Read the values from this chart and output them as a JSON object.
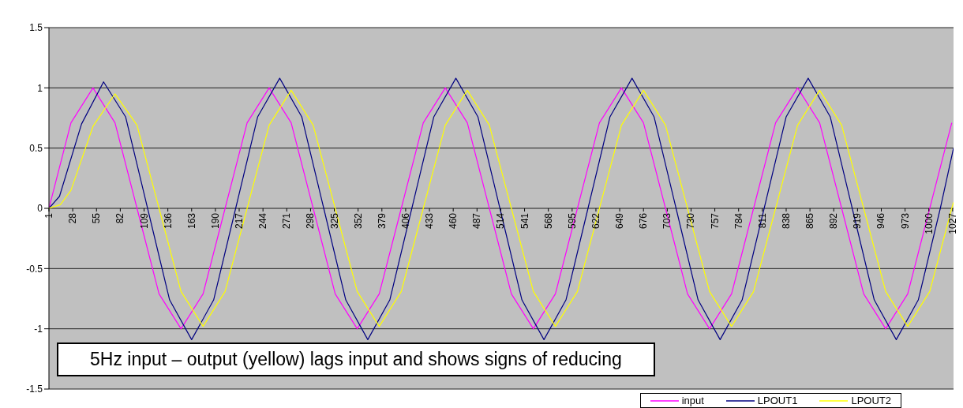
{
  "chart_data": {
    "type": "line",
    "annotations": [
      "5Hz input – output (yellow) lags input and shows signs of reducing"
    ],
    "xlim": [
      1,
      1028
    ],
    "xticks": [
      1,
      28,
      55,
      82,
      109,
      136,
      163,
      190,
      217,
      244,
      271,
      298,
      325,
      352,
      379,
      406,
      433,
      460,
      487,
      514,
      541,
      568,
      595,
      622,
      649,
      676,
      703,
      730,
      757,
      784,
      811,
      838,
      865,
      892,
      919,
      946,
      973,
      1000,
      1027
    ],
    "ylim": [
      -1.5,
      1.5
    ],
    "yticks": [
      -1.5,
      -1,
      -0.5,
      0,
      0.5,
      1,
      1.5
    ],
    "grid": "y",
    "legend": "bottom right",
    "marker": "none",
    "line_style": "solid",
    "series": [
      {
        "name": "input",
        "color": "#ff00ff",
        "x": [
          1,
          26,
          51,
          76,
          101,
          126,
          151,
          176,
          201,
          226,
          251,
          276,
          301,
          326,
          351,
          376,
          401,
          426,
          451,
          476,
          501,
          526,
          551,
          576,
          601,
          626,
          651,
          676,
          701,
          726,
          751,
          776,
          801,
          826,
          851,
          876,
          901,
          926,
          951,
          976,
          1001,
          1026
        ],
        "values": [
          0,
          0.71,
          1,
          0.71,
          0,
          -0.71,
          -1,
          -0.71,
          0,
          0.71,
          1,
          0.71,
          0,
          -0.71,
          -1,
          -0.71,
          0,
          0.71,
          1,
          0.71,
          0,
          -0.71,
          -1,
          -0.71,
          0,
          0.71,
          1,
          0.71,
          0,
          -0.71,
          -1,
          -0.71,
          0,
          0.71,
          1,
          0.71,
          0,
          -0.71,
          -1,
          -0.71,
          0,
          0.71
        ]
      },
      {
        "name": "LPOUT1",
        "color": "#000080",
        "x": [
          1,
          13,
          38,
          63,
          88,
          113,
          138,
          163,
          188,
          213,
          238,
          263,
          288,
          313,
          338,
          363,
          388,
          413,
          438,
          463,
          488,
          513,
          538,
          563,
          588,
          613,
          638,
          663,
          688,
          713,
          738,
          763,
          788,
          813,
          838,
          863,
          888,
          913,
          938,
          963,
          988,
          1013,
          1028
        ],
        "values": [
          0,
          0.1,
          0.7,
          1.05,
          0.76,
          0,
          -0.76,
          -1.09,
          -0.76,
          0,
          0.76,
          1.08,
          0.76,
          0,
          -0.76,
          -1.09,
          -0.76,
          0,
          0.76,
          1.08,
          0.76,
          0,
          -0.76,
          -1.09,
          -0.76,
          0,
          0.76,
          1.08,
          0.76,
          0,
          -0.76,
          -1.09,
          -0.76,
          0,
          0.76,
          1.08,
          0.76,
          0,
          -0.76,
          -1.09,
          -0.76,
          0,
          0.5
        ]
      },
      {
        "name": "LPOUT2",
        "color": "#ffff00",
        "x": [
          1,
          14,
          26,
          51,
          76,
          101,
          126,
          151,
          176,
          201,
          226,
          251,
          276,
          301,
          326,
          351,
          376,
          401,
          426,
          451,
          476,
          501,
          526,
          551,
          576,
          601,
          626,
          651,
          676,
          701,
          726,
          751,
          776,
          801,
          826,
          851,
          876,
          901,
          926,
          951,
          976,
          1001,
          1026,
          1028
        ],
        "values": [
          0,
          0.03,
          0.15,
          0.68,
          0.95,
          0.69,
          0,
          -0.69,
          -0.98,
          -0.69,
          0,
          0.69,
          0.98,
          0.69,
          0,
          -0.69,
          -0.98,
          -0.69,
          0,
          0.69,
          0.98,
          0.69,
          0,
          -0.69,
          -0.98,
          -0.69,
          0,
          0.69,
          0.98,
          0.69,
          0,
          -0.69,
          -0.98,
          -0.69,
          0,
          0.69,
          0.98,
          0.69,
          0,
          -0.69,
          -0.98,
          -0.69,
          0,
          0.05
        ]
      }
    ]
  }
}
